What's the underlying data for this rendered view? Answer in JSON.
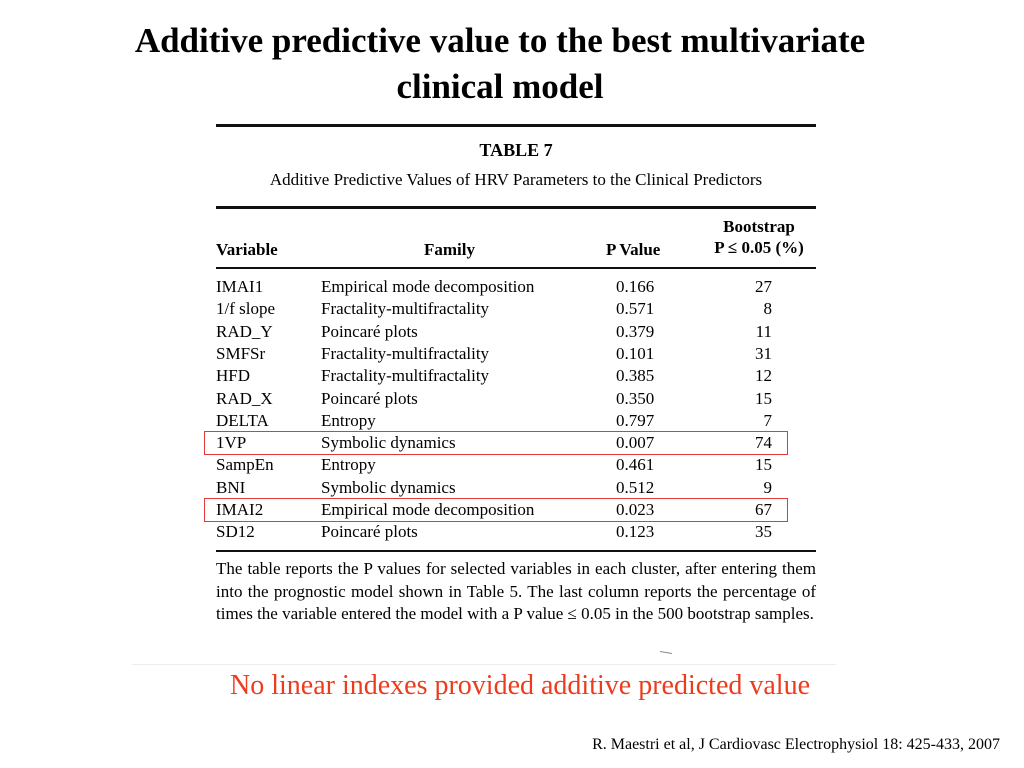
{
  "slide": {
    "title_line1": "Additive predictive value to the best multivariate",
    "title_line2": "clinical model",
    "conclusion": "No linear indexes provided additive predicted value",
    "citation": "R. Maestri et al, J Cardiovasc Electrophysiol 18: 425-433, 2007",
    "highlight_color": "#e23a3a",
    "conclusion_color": "#ec3c1e"
  },
  "table": {
    "label": "TABLE 7",
    "caption": "Additive Predictive Values of HRV Parameters to the Clinical Predictors",
    "headers": {
      "variable": "Variable",
      "family": "Family",
      "p_value": "P Value",
      "bootstrap_line1": "Bootstrap",
      "bootstrap_line2": "P ≤ 0.05 (%)"
    },
    "rows": [
      {
        "variable": "IMAI1",
        "family": "Empirical mode decomposition",
        "p": "0.166",
        "bootstrap": "27",
        "highlighted": false
      },
      {
        "variable": "1/f slope",
        "family": "Fractality-multifractality",
        "p": "0.571",
        "bootstrap": "8",
        "highlighted": false
      },
      {
        "variable": "RAD_Y",
        "family": "Poincaré plots",
        "p": "0.379",
        "bootstrap": "11",
        "highlighted": false
      },
      {
        "variable": "SMFSr",
        "family": "Fractality-multifractality",
        "p": "0.101",
        "bootstrap": "31",
        "highlighted": false
      },
      {
        "variable": "HFD",
        "family": "Fractality-multifractality",
        "p": "0.385",
        "bootstrap": "12",
        "highlighted": false
      },
      {
        "variable": "RAD_X",
        "family": "Poincaré plots",
        "p": "0.350",
        "bootstrap": "15",
        "highlighted": false
      },
      {
        "variable": "DELTA",
        "family": "Entropy",
        "p": "0.797",
        "bootstrap": "7",
        "highlighted": false
      },
      {
        "variable": "1VP",
        "family": "Symbolic dynamics",
        "p": "0.007",
        "bootstrap": "74",
        "highlighted": true
      },
      {
        "variable": "SampEn",
        "family": "Entropy",
        "p": "0.461",
        "bootstrap": "15",
        "highlighted": false
      },
      {
        "variable": "BNI",
        "family": "Symbolic dynamics",
        "p": "0.512",
        "bootstrap": "9",
        "highlighted": false
      },
      {
        "variable": "IMAI2",
        "family": "Empirical mode decomposition",
        "p": "0.023",
        "bootstrap": "67",
        "highlighted": true
      },
      {
        "variable": "SD12",
        "family": "Poincaré plots",
        "p": "0.123",
        "bootstrap": "35",
        "highlighted": false
      }
    ],
    "footnote": "The table reports the P values for selected variables in each cluster, after entering them into the prognostic model shown in Table 5. The last column reports the percentage of times the variable entered the model with a P value ≤ 0.05 in the 500 bootstrap samples."
  }
}
